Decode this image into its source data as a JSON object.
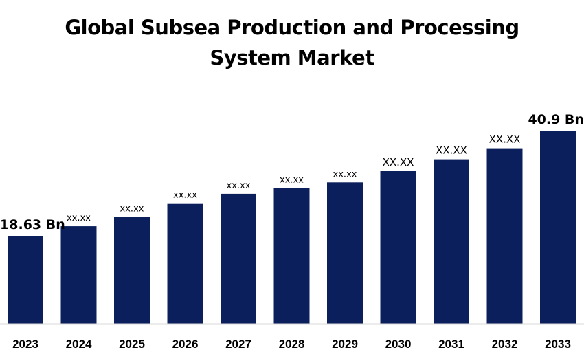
{
  "chart_data": {
    "type": "bar",
    "title": "Global Subsea Production and Processing System Market",
    "title_lines": [
      "Global Subsea Production and Processing",
      "System Market"
    ],
    "xlabel": "",
    "ylabel": "",
    "categories": [
      "2023",
      "2024",
      "2025",
      "2026",
      "2027",
      "2028",
      "2029",
      "2030",
      "2031",
      "2032",
      "2033"
    ],
    "series": [
      {
        "values": [
          18.63,
          20.65,
          22.66,
          25.51,
          27.52,
          28.75,
          29.94,
          32.32,
          34.84,
          37.17,
          40.9
        ],
        "data_labels": [
          "18.63 Bn",
          "xx.xx",
          "xx.xx",
          "xx.xx",
          "xx.xx",
          "xx.xx",
          "xx.xx",
          "XX.XX",
          "XX.XX",
          "XX.XX",
          "40.9 Bn"
        ]
      }
    ],
    "ylim": [
      0,
      40.9
    ],
    "grid": false,
    "legend": "none",
    "bar_color": "#0b1f5c"
  }
}
